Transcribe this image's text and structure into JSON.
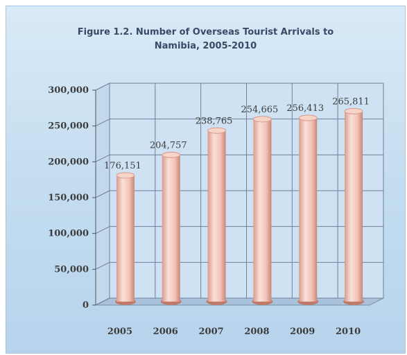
{
  "chart_data": {
    "type": "bar",
    "title_lines": [
      "Figure 1.2. Number of Overseas Tourist Arrivals to",
      "Namibia, 2005-2010"
    ],
    "categories": [
      "2005",
      "2006",
      "2007",
      "2008",
      "2009",
      "2010"
    ],
    "values": [
      176151,
      204757,
      238765,
      254665,
      256413,
      265811
    ],
    "value_labels": [
      "176,151",
      "204,757",
      "238,765",
      "254,665",
      "256,413",
      "265,811"
    ],
    "yticks": [
      "0",
      "50,000",
      "100,000",
      "150,000",
      "200,000",
      "250,000",
      "300,000"
    ],
    "ylim": [
      0,
      300000
    ],
    "xlabel": "",
    "ylabel": "",
    "grid": true,
    "bar_color": "#f2c4b8"
  }
}
